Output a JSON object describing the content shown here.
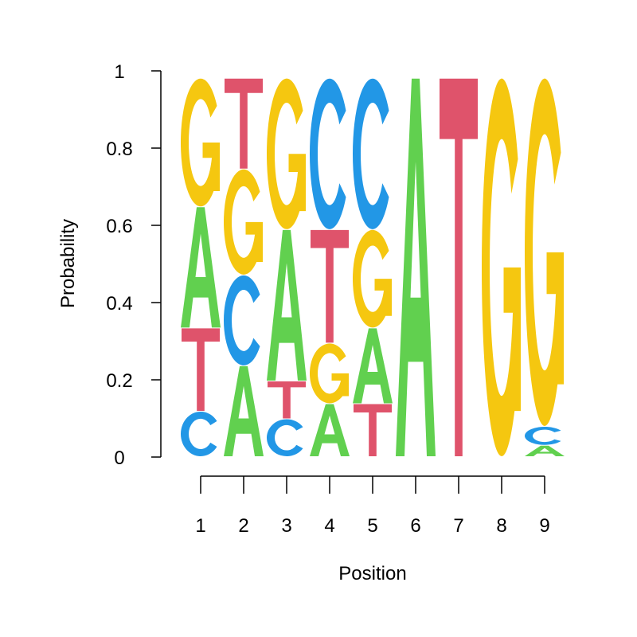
{
  "chart_data": {
    "type": "sequence-logo",
    "xlabel": "Position",
    "ylabel": "Probability",
    "ylim": [
      0,
      1
    ],
    "yticks": [
      "0",
      "0.2",
      "0.4",
      "0.6",
      "0.8",
      "1"
    ],
    "ytick_values": [
      0,
      0.2,
      0.4,
      0.6,
      0.8,
      1
    ],
    "xticks": [
      "1",
      "2",
      "3",
      "4",
      "5",
      "6",
      "7",
      "8",
      "9"
    ],
    "colors": {
      "A": "#61D04F",
      "C": "#2297E6",
      "G": "#F5C710",
      "T": "#DF536B"
    },
    "positions": [
      {
        "pos": 1,
        "letters": [
          {
            "l": "C",
            "p": 0.12
          },
          {
            "l": "T",
            "p": 0.22
          },
          {
            "l": "A",
            "p": 0.32
          },
          {
            "l": "G",
            "p": 0.34
          }
        ]
      },
      {
        "pos": 2,
        "letters": [
          {
            "l": "A",
            "p": 0.24
          },
          {
            "l": "C",
            "p": 0.24
          },
          {
            "l": "G",
            "p": 0.28
          },
          {
            "l": "T",
            "p": 0.24
          }
        ]
      },
      {
        "pos": 3,
        "letters": [
          {
            "l": "C",
            "p": 0.1
          },
          {
            "l": "T",
            "p": 0.1
          },
          {
            "l": "A",
            "p": 0.4
          },
          {
            "l": "G",
            "p": 0.4
          }
        ]
      },
      {
        "pos": 4,
        "letters": [
          {
            "l": "A",
            "p": 0.14
          },
          {
            "l": "G",
            "p": 0.16
          },
          {
            "l": "T",
            "p": 0.3
          },
          {
            "l": "C",
            "p": 0.4
          }
        ]
      },
      {
        "pos": 5,
        "letters": [
          {
            "l": "T",
            "p": 0.14
          },
          {
            "l": "A",
            "p": 0.2
          },
          {
            "l": "G",
            "p": 0.26
          },
          {
            "l": "C",
            "p": 0.4
          }
        ]
      },
      {
        "pos": 6,
        "letters": [
          {
            "l": "A",
            "p": 1.0
          }
        ]
      },
      {
        "pos": 7,
        "letters": [
          {
            "l": "T",
            "p": 1.0
          }
        ]
      },
      {
        "pos": 8,
        "letters": [
          {
            "l": "G",
            "p": 1.0
          }
        ]
      },
      {
        "pos": 9,
        "letters": [
          {
            "l": "A",
            "p": 0.03
          },
          {
            "l": "C",
            "p": 0.05
          },
          {
            "l": "G",
            "p": 0.92
          }
        ]
      }
    ]
  }
}
